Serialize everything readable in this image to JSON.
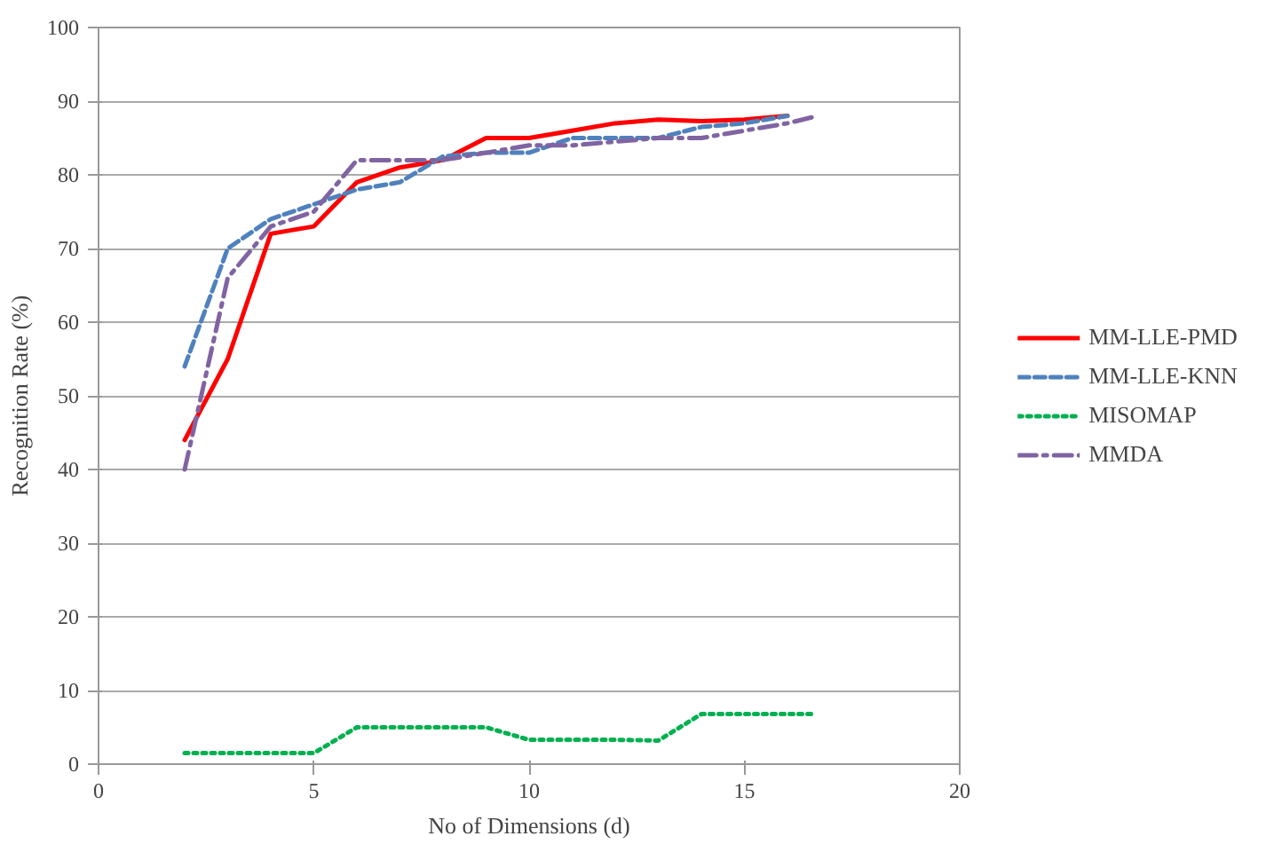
{
  "chart_data": {
    "type": "line",
    "xlabel": "No of Dimensions (d)",
    "ylabel": "Recognition Rate (%)",
    "xlim": [
      0,
      20
    ],
    "xticks": [
      0,
      5,
      10,
      15,
      20
    ],
    "ylim": [
      0,
      100
    ],
    "yticks": [
      0,
      10,
      20,
      30,
      40,
      50,
      60,
      70,
      80,
      90,
      100
    ],
    "grid": "y",
    "legend": "right",
    "series": [
      {
        "name": "MM-LLE-PMD",
        "color": "#ff0000",
        "line_style": "solid",
        "x": [
          2,
          3,
          4,
          5,
          6,
          7,
          8,
          9,
          10,
          11,
          12,
          13,
          14,
          15,
          16
        ],
        "values": [
          44,
          55,
          72,
          73,
          79,
          81,
          82,
          85,
          85,
          86,
          87,
          87.5,
          87.3,
          87.5,
          88
        ]
      },
      {
        "name": "MM-LLE-KNN",
        "color": "#4f81bd",
        "line_style": "dashed",
        "x": [
          2,
          3,
          4,
          5,
          6,
          7,
          8,
          9,
          10,
          11,
          12,
          13,
          14,
          15,
          16
        ],
        "values": [
          54,
          70,
          74,
          76,
          78,
          79,
          82.5,
          83,
          83,
          85,
          85,
          85,
          86.5,
          87,
          88
        ]
      },
      {
        "name": "MISOMAP",
        "color": "#00b050",
        "line_style": "dotted",
        "x": [
          2,
          3,
          4,
          5,
          6,
          7,
          8,
          9,
          10,
          11,
          12,
          13,
          14,
          15,
          16,
          16.6
        ],
        "values": [
          1.5,
          1.5,
          1.5,
          1.5,
          5,
          5,
          5,
          5,
          3.3,
          3.3,
          3.3,
          3.2,
          6.8,
          6.8,
          6.8,
          6.8
        ]
      },
      {
        "name": "MMDA",
        "color": "#8064a2",
        "line_style": "dashdot",
        "x": [
          2,
          3,
          4,
          5,
          6,
          7,
          8,
          9,
          10,
          11,
          12,
          13,
          14,
          15,
          16,
          16.7
        ],
        "values": [
          40,
          66,
          73,
          75,
          82,
          82,
          82,
          83,
          84,
          84,
          84.5,
          85,
          85,
          86,
          87,
          88
        ]
      }
    ]
  }
}
